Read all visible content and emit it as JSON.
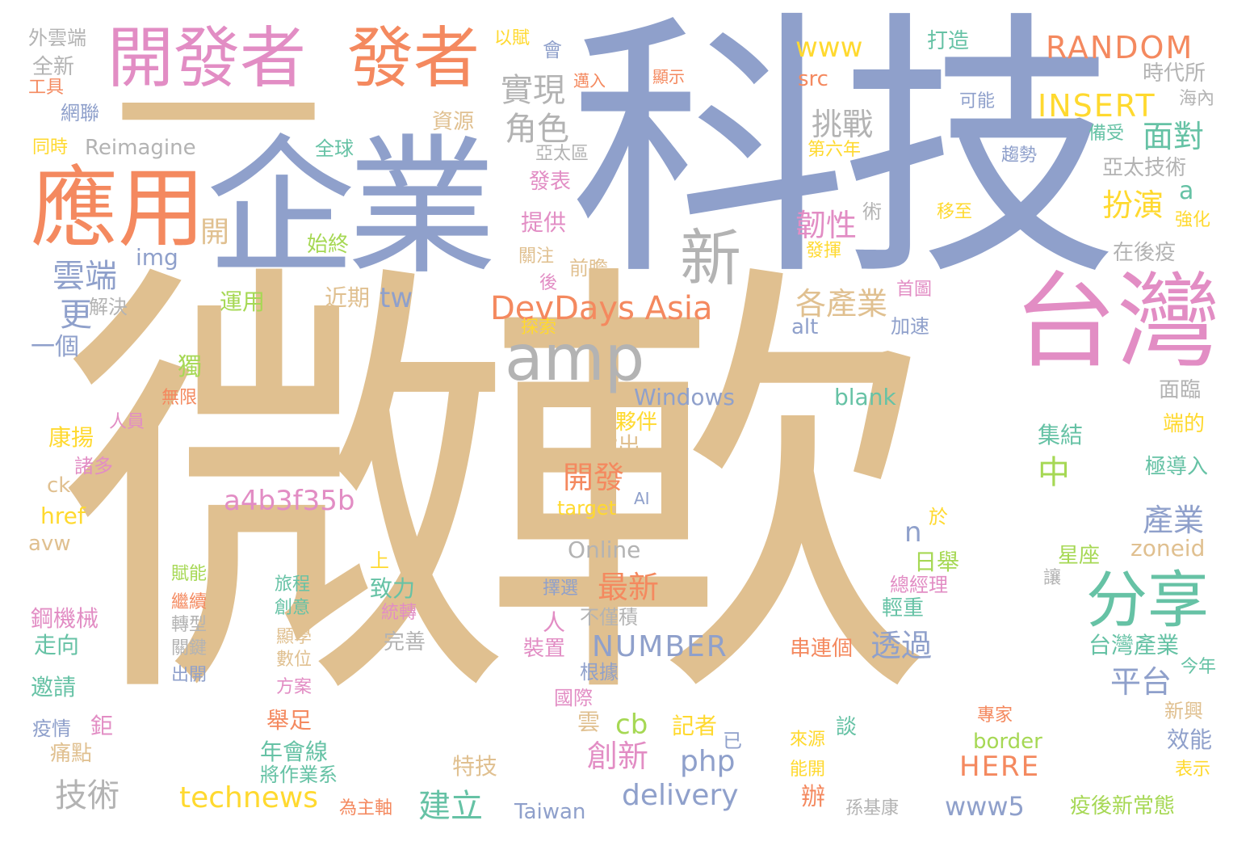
{
  "colors": {
    "tan": "#e0c090",
    "blue": "#8fa0cb",
    "pink": "#e28dc4",
    "orange": "#f4895f",
    "green": "#66c2a5",
    "lime": "#a6d854",
    "yellow": "#ffd92f",
    "gray": "#b3b3b3"
  },
  "words": [
    {
      "text": "微軟",
      "color": "tan"
    },
    {
      "text": "科技",
      "color": "blue"
    },
    {
      "text": "企業",
      "color": "blue"
    },
    {
      "text": "一",
      "color": "tan"
    },
    {
      "text": "應用",
      "color": "orange"
    },
    {
      "text": "台灣",
      "color": "pink"
    },
    {
      "text": "開發者",
      "color": "pink"
    },
    {
      "text": "發者",
      "color": "orange"
    },
    {
      "text": "分享",
      "color": "green"
    },
    {
      "text": "amp",
      "color": "gray"
    },
    {
      "text": "新",
      "color": "gray"
    },
    {
      "text": "DevDays Asia",
      "color": "orange"
    },
    {
      "text": "RANDOM",
      "color": "orange"
    },
    {
      "text": "www",
      "color": "yellow"
    },
    {
      "text": "INSERT",
      "color": "yellow"
    },
    {
      "text": "實現",
      "color": "gray"
    },
    {
      "text": "角色",
      "color": "gray"
    },
    {
      "text": "挑戰",
      "color": "gray"
    },
    {
      "text": "韌性",
      "color": "pink"
    },
    {
      "text": "各產業",
      "color": "tan"
    },
    {
      "text": "雲端",
      "color": "blue"
    },
    {
      "text": "a4b3f35b",
      "color": "pink"
    },
    {
      "text": "NUMBER",
      "color": "blue"
    },
    {
      "text": "technews",
      "color": "yellow"
    },
    {
      "text": "delivery",
      "color": "blue"
    },
    {
      "text": "技術",
      "color": "gray"
    },
    {
      "text": "建立",
      "color": "green"
    },
    {
      "text": "www5",
      "color": "blue"
    },
    {
      "text": "HERE",
      "color": "orange"
    },
    {
      "text": "php",
      "color": "blue"
    },
    {
      "text": "創新",
      "color": "pink"
    },
    {
      "text": "cb",
      "color": "lime"
    },
    {
      "text": "最新",
      "color": "orange"
    },
    {
      "text": "開發",
      "color": "orange"
    },
    {
      "text": "平台",
      "color": "blue"
    },
    {
      "text": "產業",
      "color": "blue"
    },
    {
      "text": "透過",
      "color": "blue"
    },
    {
      "text": "面對",
      "color": "green"
    },
    {
      "text": "扮演",
      "color": "yellow"
    },
    {
      "text": "tw",
      "color": "blue"
    },
    {
      "text": "Windows",
      "color": "blue"
    },
    {
      "text": "blank",
      "color": "green"
    },
    {
      "text": "Online",
      "color": "gray"
    },
    {
      "text": "Reimagine",
      "color": "gray"
    },
    {
      "text": "外雲端",
      "color": "gray"
    },
    {
      "text": "全新",
      "color": "gray"
    },
    {
      "text": "工具",
      "color": "orange"
    },
    {
      "text": "網聯",
      "color": "blue"
    },
    {
      "text": "同時",
      "color": "yellow"
    },
    {
      "text": "以賦",
      "color": "yellow"
    },
    {
      "text": "會",
      "color": "blue"
    },
    {
      "text": "資源",
      "color": "tan"
    },
    {
      "text": "邁入",
      "color": "orange"
    },
    {
      "text": "顯示",
      "color": "orange"
    },
    {
      "text": "亞太區",
      "color": "gray"
    },
    {
      "text": "全球",
      "color": "green"
    },
    {
      "text": "發表",
      "color": "pink"
    },
    {
      "text": "提供",
      "color": "pink"
    },
    {
      "text": "關注",
      "color": "tan"
    },
    {
      "text": "前瞻",
      "color": "tan"
    },
    {
      "text": "後",
      "color": "pink"
    },
    {
      "text": "始終",
      "color": "lime"
    },
    {
      "text": "開",
      "color": "tan"
    },
    {
      "text": "img",
      "color": "blue"
    },
    {
      "text": "更",
      "color": "blue"
    },
    {
      "text": "解決",
      "color": "gray"
    },
    {
      "text": "一個",
      "color": "blue"
    },
    {
      "text": "運用",
      "color": "lime"
    },
    {
      "text": "近期",
      "color": "tan"
    },
    {
      "text": "探索",
      "color": "yellow"
    },
    {
      "text": "獨",
      "color": "lime"
    },
    {
      "text": "無限",
      "color": "orange"
    },
    {
      "text": "人員",
      "color": "pink"
    },
    {
      "text": "康揚",
      "color": "yellow"
    },
    {
      "text": "諸多",
      "color": "pink"
    },
    {
      "text": "ck",
      "color": "tan"
    },
    {
      "text": "href",
      "color": "yellow"
    },
    {
      "text": "avw",
      "color": "tan"
    },
    {
      "text": "賦能",
      "color": "lime"
    },
    {
      "text": "旅程",
      "color": "green"
    },
    {
      "text": "創意",
      "color": "green"
    },
    {
      "text": "繼續",
      "color": "orange"
    },
    {
      "text": "轉型",
      "color": "gray"
    },
    {
      "text": "關鍵",
      "color": "gray"
    },
    {
      "text": "出開",
      "color": "blue"
    },
    {
      "text": "鋼機械",
      "color": "pink"
    },
    {
      "text": "走向",
      "color": "green"
    },
    {
      "text": "邀請",
      "color": "green"
    },
    {
      "text": "疫情",
      "color": "blue"
    },
    {
      "text": "痛點",
      "color": "tan"
    },
    {
      "text": "鉅",
      "color": "pink"
    },
    {
      "text": "顯學",
      "color": "tan"
    },
    {
      "text": "數位",
      "color": "tan"
    },
    {
      "text": "方案",
      "color": "pink"
    },
    {
      "text": "舉足",
      "color": "orange"
    },
    {
      "text": "年會線",
      "color": "green"
    },
    {
      "text": "將作業系",
      "color": "green"
    },
    {
      "text": "為主軸",
      "color": "orange"
    },
    {
      "text": "特技",
      "color": "tan"
    },
    {
      "text": "雲",
      "color": "tan"
    },
    {
      "text": "國際",
      "color": "pink"
    },
    {
      "text": "根據",
      "color": "blue"
    },
    {
      "text": "裝置",
      "color": "pink"
    },
    {
      "text": "人",
      "color": "pink"
    },
    {
      "text": "不僅積",
      "color": "gray"
    },
    {
      "text": "致力",
      "color": "green"
    },
    {
      "text": "上",
      "color": "yellow"
    },
    {
      "text": "統轉",
      "color": "pink"
    },
    {
      "text": "完善",
      "color": "gray"
    },
    {
      "text": "擇選",
      "color": "blue"
    },
    {
      "text": "target",
      "color": "yellow"
    },
    {
      "text": "AI",
      "color": "blue"
    },
    {
      "text": "指出",
      "color": "tan"
    },
    {
      "text": "夥伴",
      "color": "yellow"
    },
    {
      "text": "記者",
      "color": "yellow"
    },
    {
      "text": "已",
      "color": "blue"
    },
    {
      "text": "來源",
      "color": "yellow"
    },
    {
      "text": "能開",
      "color": "yellow"
    },
    {
      "text": "辦",
      "color": "orange"
    },
    {
      "text": "談",
      "color": "green"
    },
    {
      "text": "孫基康",
      "color": "gray"
    },
    {
      "text": "Taiwan",
      "color": "blue"
    },
    {
      "text": "串連個",
      "color": "orange"
    },
    {
      "text": "border",
      "color": "lime"
    },
    {
      "text": "專家",
      "color": "orange"
    },
    {
      "text": "疫後新常態",
      "color": "lime"
    },
    {
      "text": "表示",
      "color": "yellow"
    },
    {
      "text": "效能",
      "color": "blue"
    },
    {
      "text": "新興",
      "color": "tan"
    },
    {
      "text": "今年",
      "color": "green"
    },
    {
      "text": "台灣產業",
      "color": "green"
    },
    {
      "text": "輕重",
      "color": "green"
    },
    {
      "text": "總經理",
      "color": "pink"
    },
    {
      "text": "讓",
      "color": "gray"
    },
    {
      "text": "星座",
      "color": "lime"
    },
    {
      "text": "zoneid",
      "color": "tan"
    },
    {
      "text": "日舉",
      "color": "lime"
    },
    {
      "text": "於",
      "color": "yellow"
    },
    {
      "text": "n",
      "color": "blue"
    },
    {
      "text": "中",
      "color": "lime"
    },
    {
      "text": "集結",
      "color": "green"
    },
    {
      "text": "極導入",
      "color": "green"
    },
    {
      "text": "端的",
      "color": "yellow"
    },
    {
      "text": "面臨",
      "color": "gray"
    },
    {
      "text": "alt",
      "color": "blue"
    },
    {
      "text": "加速",
      "color": "blue"
    },
    {
      "text": "首圖",
      "color": "pink"
    },
    {
      "text": "在後疫",
      "color": "gray"
    },
    {
      "text": "術",
      "color": "gray"
    },
    {
      "text": "移至",
      "color": "yellow"
    },
    {
      "text": "發揮",
      "color": "yellow"
    },
    {
      "text": "強化",
      "color": "yellow"
    },
    {
      "text": "a",
      "color": "green"
    },
    {
      "text": "亞太技術",
      "color": "gray"
    },
    {
      "text": "趨勢",
      "color": "blue"
    },
    {
      "text": "第六年",
      "color": "yellow"
    },
    {
      "text": "備受",
      "color": "green"
    },
    {
      "text": "海內",
      "color": "gray"
    },
    {
      "text": "時代所",
      "color": "gray"
    },
    {
      "text": "可能",
      "color": "blue"
    },
    {
      "text": "src",
      "color": "orange"
    },
    {
      "text": "打造",
      "color": "green"
    }
  ]
}
